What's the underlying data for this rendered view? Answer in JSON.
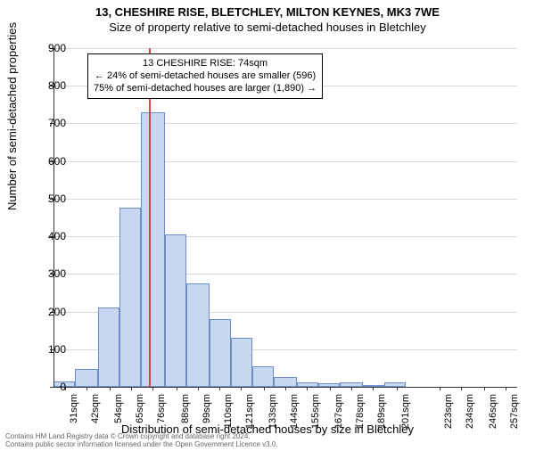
{
  "title_main": "13, CHESHIRE RISE, BLETCHLEY, MILTON KEYNES, MK3 7WE",
  "title_sub": "Size of property relative to semi-detached houses in Bletchley",
  "ylabel": "Number of semi-detached properties",
  "xlabel": "Distribution of semi-detached houses by size in Bletchley",
  "footer_line1": "Contains HM Land Registry data © Crown copyright and database right 2024.",
  "footer_line2": "Contains public sector information licensed under the Open Government Licence v3.0.",
  "chart": {
    "type": "histogram",
    "ylim": [
      0,
      900
    ],
    "yticks": [
      0,
      100,
      200,
      300,
      400,
      500,
      600,
      700,
      800,
      900
    ],
    "xlim": [
      25,
      263
    ],
    "xticks": [
      31,
      42,
      54,
      65,
      76,
      88,
      99,
      110,
      121,
      133,
      144,
      155,
      167,
      178,
      189,
      201,
      223,
      234,
      246,
      257
    ],
    "xtick_unit": "sqm",
    "bar_fill": "#c7d9f2",
    "bar_border": "#6d8ec8",
    "grid_color": "#d9d9d9",
    "axis_color": "#333333",
    "background_color": "#ffffff",
    "bars": [
      {
        "x0": 25,
        "x1": 36,
        "y": 15
      },
      {
        "x0": 36,
        "x1": 48,
        "y": 48
      },
      {
        "x0": 48,
        "x1": 59,
        "y": 210
      },
      {
        "x0": 59,
        "x1": 70,
        "y": 475
      },
      {
        "x0": 70,
        "x1": 82,
        "y": 730
      },
      {
        "x0": 82,
        "x1": 93,
        "y": 405
      },
      {
        "x0": 93,
        "x1": 105,
        "y": 275
      },
      {
        "x0": 105,
        "x1": 116,
        "y": 180
      },
      {
        "x0": 116,
        "x1": 127,
        "y": 130
      },
      {
        "x0": 127,
        "x1": 138,
        "y": 55
      },
      {
        "x0": 138,
        "x1": 150,
        "y": 25
      },
      {
        "x0": 150,
        "x1": 161,
        "y": 12
      },
      {
        "x0": 161,
        "x1": 172,
        "y": 10
      },
      {
        "x0": 172,
        "x1": 184,
        "y": 12
      },
      {
        "x0": 184,
        "x1": 195,
        "y": 5
      },
      {
        "x0": 195,
        "x1": 206,
        "y": 12
      }
    ],
    "marker": {
      "x": 74,
      "color": "#d94343"
    },
    "annotation": {
      "line1": "13 CHESHIRE RISE: 74sqm",
      "line2": "← 24% of semi-detached houses are smaller (596)",
      "line3": "75% of semi-detached houses are larger (1,890) →"
    }
  }
}
